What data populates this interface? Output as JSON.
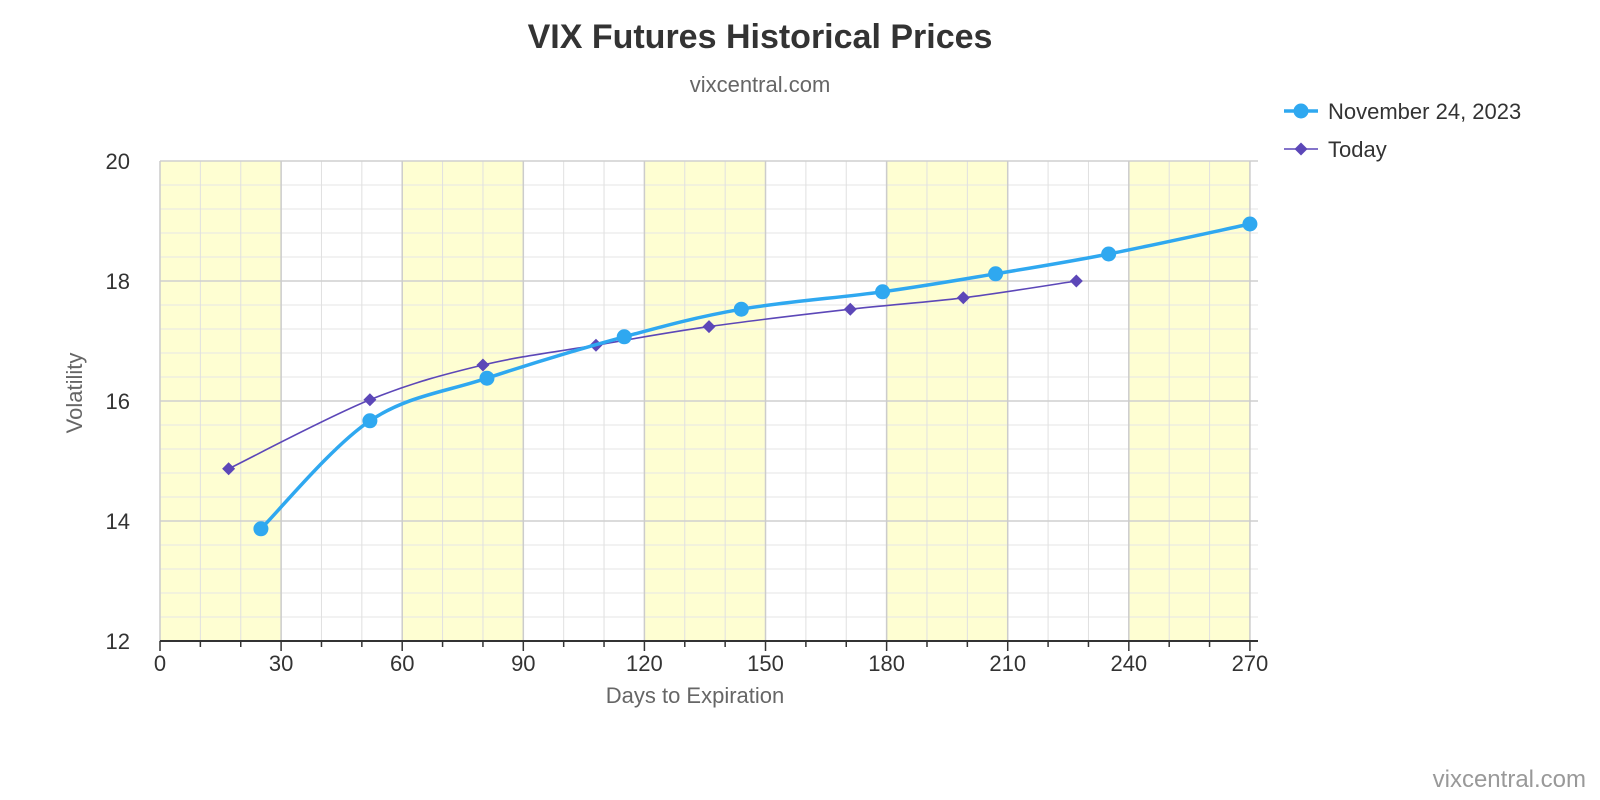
{
  "chart_data": {
    "type": "line",
    "title": "VIX Futures Historical Prices",
    "subtitle": "vixcentral.com",
    "credit": "vixcentral.com",
    "xlabel": "Days to Expiration",
    "ylabel": "Volatility",
    "xlim": [
      0,
      272
    ],
    "ylim": [
      12,
      20
    ],
    "x_ticks": [
      0,
      30,
      60,
      90,
      120,
      150,
      180,
      210,
      240,
      270
    ],
    "y_ticks": [
      12,
      14,
      16,
      18,
      20
    ],
    "x_minor_step": 10,
    "y_minor_step": 0.4,
    "grid": true,
    "x_bands": [
      [
        0,
        30
      ],
      [
        60,
        90
      ],
      [
        120,
        150
      ],
      [
        180,
        210
      ],
      [
        240,
        270
      ]
    ],
    "band_color": "#fefed2",
    "legend_position": "top-right",
    "series": [
      {
        "name": "November 24, 2023",
        "color": "#2fa8f0",
        "marker": "circle",
        "points": [
          [
            25,
            13.87
          ],
          [
            52,
            15.67
          ],
          [
            81,
            16.38
          ],
          [
            115,
            17.07
          ],
          [
            144,
            17.53
          ],
          [
            179,
            17.82
          ],
          [
            207,
            18.12
          ],
          [
            235,
            18.45
          ],
          [
            270,
            18.95
          ]
        ]
      },
      {
        "name": "Today",
        "color": "#5c47b8",
        "marker": "diamond",
        "points": [
          [
            17,
            14.87
          ],
          [
            52,
            16.02
          ],
          [
            80,
            16.6
          ],
          [
            108,
            16.93
          ],
          [
            136,
            17.24
          ],
          [
            171,
            17.53
          ],
          [
            199,
            17.72
          ],
          [
            227,
            18.0
          ]
        ]
      }
    ]
  }
}
